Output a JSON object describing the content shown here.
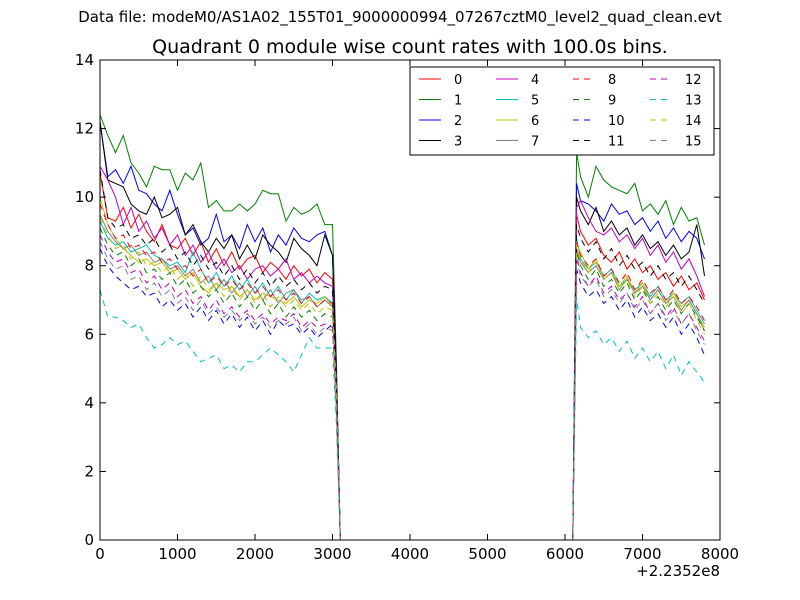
{
  "page": {
    "heading": "Data file: modeM0/AS1A02_155T01_9000000994_07267cztM0_level2_quad_clean.evt"
  },
  "chart_data": {
    "type": "line",
    "title": "Quadrant 0 module wise count rates with 100.0s bins.",
    "xlabel": "",
    "ylabel": "",
    "x_offset_label": "+2.2352e8",
    "xlim": [
      0,
      8000
    ],
    "ylim": [
      0,
      14
    ],
    "x_ticks": [
      0,
      1000,
      2000,
      3000,
      4000,
      5000,
      6000,
      7000,
      8000
    ],
    "y_ticks": [
      0,
      2,
      4,
      6,
      8,
      10,
      12,
      14
    ],
    "legend_position": "top-right",
    "legend_columns": 4,
    "segment_a_x": [
      0,
      100,
      200,
      300,
      400,
      500,
      600,
      700,
      800,
      900,
      1000,
      1100,
      1200,
      1300,
      1400,
      1500,
      1600,
      1700,
      1800,
      1900,
      2000,
      2100,
      2200,
      2300,
      2400,
      2500,
      2600,
      2700,
      2800,
      2900,
      3000,
      3050,
      3100
    ],
    "segment_b_x": [
      6150,
      6200,
      6300,
      6400,
      6500,
      6600,
      6700,
      6800,
      6900,
      7000,
      7100,
      7200,
      7300,
      7400,
      7500,
      7600,
      7700,
      7800
    ],
    "gap_x": [
      3100,
      6100
    ],
    "series": [
      {
        "name": "0",
        "color": "#ff0000",
        "dash": "solid",
        "a": [
          10.7,
          9.4,
          9.3,
          9.7,
          9.1,
          9.5,
          9.0,
          8.7,
          9.2,
          8.6,
          8.5,
          8.8,
          8.3,
          8.7,
          8.1,
          8.5,
          8.0,
          8.4,
          7.9,
          8.2,
          8.3,
          7.8,
          8.1,
          7.9,
          7.6,
          8.0,
          7.7,
          7.9,
          7.5,
          7.8,
          7.6,
          4.8,
          0
        ],
        "b": [
          9.5,
          9.0,
          8.6,
          8.8,
          8.3,
          8.1,
          8.4,
          7.9,
          8.2,
          7.8,
          8.0,
          7.6,
          7.8,
          7.4,
          7.7,
          7.3,
          7.5,
          7.0
        ]
      },
      {
        "name": "1",
        "color": "#008000",
        "dash": "solid",
        "a": [
          12.4,
          11.8,
          11.3,
          11.8,
          11.0,
          10.7,
          10.3,
          10.9,
          10.8,
          10.8,
          10.2,
          10.7,
          10.5,
          11.0,
          9.7,
          9.9,
          9.6,
          9.6,
          9.8,
          9.6,
          9.8,
          10.2,
          10.1,
          10.1,
          9.3,
          9.7,
          9.5,
          9.6,
          9.8,
          9.2,
          9.2,
          5.2,
          0
        ],
        "b": [
          11.3,
          10.6,
          10.0,
          10.9,
          10.5,
          10.3,
          10.2,
          10.1,
          10.4,
          9.6,
          9.8,
          9.5,
          9.9,
          9.2,
          9.7,
          9.3,
          9.4,
          8.6
        ]
      },
      {
        "name": "2",
        "color": "#0000ff",
        "dash": "solid",
        "a": [
          12.2,
          10.6,
          10.8,
          10.4,
          10.9,
          10.2,
          10.1,
          9.8,
          9.6,
          10.2,
          9.5,
          8.9,
          9.1,
          8.6,
          8.8,
          9.5,
          8.7,
          8.9,
          8.5,
          9.2,
          8.7,
          9.1,
          8.4,
          8.9,
          8.6,
          9.1,
          8.8,
          8.7,
          8.9,
          9.0,
          8.3,
          5.0,
          0
        ],
        "b": [
          10.4,
          9.9,
          9.8,
          9.6,
          9.3,
          9.8,
          9.5,
          9.6,
          9.2,
          9.4,
          9.0,
          9.3,
          8.8,
          9.1,
          8.7,
          9.0,
          8.8,
          8.2
        ]
      },
      {
        "name": "3",
        "color": "#000000",
        "dash": "solid",
        "a": [
          12.2,
          10.5,
          10.4,
          10.3,
          9.8,
          9.6,
          9.5,
          10.0,
          9.4,
          9.5,
          9.7,
          8.9,
          9.2,
          8.7,
          8.4,
          8.8,
          8.5,
          8.9,
          8.2,
          8.6,
          8.2,
          8.9,
          8.6,
          8.4,
          8.1,
          8.8,
          8.5,
          8.3,
          8.0,
          8.9,
          8.3,
          4.7,
          0
        ],
        "b": [
          10.0,
          9.6,
          9.2,
          9.7,
          9.0,
          9.3,
          8.9,
          9.1,
          8.6,
          8.9,
          8.5,
          8.7,
          8.3,
          8.6,
          8.2,
          8.4,
          9.2,
          7.7
        ]
      },
      {
        "name": "4",
        "color": "#bf00bf",
        "dash": "solid",
        "a": [
          10.9,
          10.5,
          10.0,
          9.2,
          9.7,
          9.0,
          9.3,
          8.8,
          9.1,
          8.6,
          8.9,
          8.3,
          8.6,
          8.1,
          8.4,
          7.9,
          8.2,
          7.8,
          8.0,
          7.6,
          7.9,
          8.0,
          7.7,
          7.9,
          8.2,
          7.6,
          7.8,
          7.5,
          7.7,
          7.5,
          7.4,
          4.5,
          0
        ],
        "b": [
          9.7,
          9.9,
          9.4,
          9.0,
          8.9,
          9.1,
          8.7,
          8.9,
          8.5,
          8.8,
          8.3,
          8.6,
          8.1,
          8.4,
          7.9,
          8.2,
          7.7,
          7.1
        ]
      },
      {
        "name": "5",
        "color": "#00bfbf",
        "dash": "solid",
        "a": [
          9.3,
          8.8,
          8.6,
          8.7,
          8.4,
          8.5,
          8.6,
          8.3,
          8.2,
          8.0,
          8.1,
          7.8,
          8.4,
          7.9,
          7.5,
          7.8,
          7.4,
          7.7,
          7.3,
          7.6,
          7.2,
          7.5,
          7.1,
          7.4,
          7.0,
          7.3,
          6.9,
          7.2,
          7.0,
          7.1,
          6.9,
          4.3,
          0
        ],
        "b": [
          8.8,
          8.2,
          7.9,
          8.1,
          7.7,
          7.9,
          7.4,
          7.6,
          7.3,
          7.5,
          7.1,
          7.4,
          7.0,
          7.2,
          6.9,
          7.1,
          6.7,
          6.3
        ]
      },
      {
        "name": "6",
        "color": "#bfbf00",
        "dash": "solid",
        "a": [
          10.0,
          9.2,
          8.8,
          8.5,
          8.3,
          8.1,
          8.2,
          8.0,
          8.1,
          7.8,
          7.9,
          7.6,
          7.8,
          7.4,
          7.2,
          7.5,
          7.3,
          7.4,
          7.1,
          7.3,
          7.0,
          7.2,
          7.1,
          7.0,
          6.9,
          7.1,
          6.8,
          7.0,
          6.9,
          7.1,
          6.8,
          4.4,
          0
        ],
        "b": [
          8.6,
          8.4,
          7.9,
          8.2,
          7.6,
          7.8,
          7.4,
          7.7,
          7.2,
          7.5,
          7.0,
          7.3,
          6.9,
          7.2,
          6.8,
          7.0,
          6.6,
          6.2
        ]
      },
      {
        "name": "7",
        "color": "#808080",
        "dash": "solid",
        "a": [
          9.5,
          9.0,
          8.7,
          8.5,
          8.6,
          8.3,
          8.4,
          8.1,
          8.2,
          7.9,
          8.0,
          7.7,
          7.9,
          7.5,
          7.7,
          7.3,
          7.6,
          7.2,
          7.5,
          7.1,
          7.4,
          7.0,
          7.3,
          6.9,
          7.2,
          7.3,
          7.0,
          7.1,
          6.8,
          7.0,
          6.8,
          4.2,
          0
        ],
        "b": [
          8.5,
          8.1,
          7.8,
          8.0,
          7.6,
          7.8,
          7.3,
          7.6,
          7.2,
          7.4,
          7.0,
          7.3,
          6.9,
          7.1,
          6.7,
          7.0,
          6.6,
          6.1
        ]
      },
      {
        "name": "8",
        "color": "#ff0000",
        "dash": "dashed",
        "a": [
          9.8,
          9.2,
          8.8,
          8.9,
          8.5,
          8.6,
          8.3,
          8.4,
          8.1,
          8.2,
          7.9,
          8.0,
          7.7,
          7.9,
          7.5,
          7.7,
          7.4,
          7.6,
          7.3,
          7.5,
          7.2,
          7.4,
          7.1,
          7.3,
          7.0,
          7.2,
          6.9,
          7.1,
          6.8,
          7.0,
          6.9,
          4.3,
          0
        ],
        "b": [
          8.7,
          8.3,
          8.0,
          8.2,
          7.7,
          7.9,
          7.5,
          7.8,
          7.3,
          7.6,
          7.2,
          7.4,
          7.0,
          7.3,
          6.9,
          7.1,
          6.8,
          6.4
        ]
      },
      {
        "name": "9",
        "color": "#008000",
        "dash": "dashed",
        "a": [
          9.1,
          8.6,
          8.3,
          8.4,
          8.0,
          8.2,
          7.8,
          7.9,
          7.6,
          7.8,
          7.4,
          7.6,
          7.2,
          7.4,
          7.1,
          7.3,
          6.9,
          7.2,
          6.8,
          7.1,
          6.7,
          7.0,
          6.6,
          6.9,
          6.5,
          6.8,
          6.5,
          6.7,
          6.4,
          6.6,
          6.5,
          4.1,
          0
        ],
        "b": [
          8.4,
          8.0,
          7.6,
          7.9,
          7.4,
          7.6,
          7.2,
          7.5,
          7.0,
          7.3,
          6.9,
          7.1,
          6.7,
          7.0,
          6.6,
          6.9,
          6.5,
          6.1
        ]
      },
      {
        "name": "10",
        "color": "#0000ff",
        "dash": "dashed",
        "a": [
          8.5,
          8.0,
          7.7,
          7.5,
          7.3,
          7.4,
          7.1,
          7.2,
          6.8,
          7.0,
          6.7,
          6.9,
          6.5,
          6.8,
          6.4,
          6.7,
          6.3,
          6.6,
          6.2,
          6.5,
          6.1,
          6.4,
          6.0,
          6.4,
          6.2,
          6.3,
          6.0,
          6.2,
          5.9,
          6.1,
          6.3,
          3.9,
          0
        ],
        "b": [
          7.9,
          7.5,
          7.1,
          7.3,
          6.9,
          7.1,
          6.7,
          7.0,
          6.5,
          6.8,
          6.4,
          6.6,
          6.2,
          6.5,
          6.0,
          6.3,
          5.9,
          5.4
        ]
      },
      {
        "name": "11",
        "color": "#000000",
        "dash": "dashed",
        "a": [
          10.8,
          9.4,
          9.1,
          9.2,
          8.8,
          8.9,
          8.6,
          8.8,
          8.4,
          8.6,
          8.2,
          8.4,
          8.0,
          8.3,
          7.9,
          8.1,
          7.7,
          8.0,
          7.6,
          7.9,
          7.5,
          7.8,
          7.4,
          7.7,
          7.4,
          7.6,
          7.3,
          7.5,
          7.2,
          7.4,
          7.3,
          4.5,
          0
        ],
        "b": [
          9.2,
          8.8,
          8.4,
          8.7,
          8.2,
          8.5,
          8.0,
          8.3,
          7.9,
          8.1,
          7.7,
          8.0,
          7.6,
          7.8,
          7.4,
          7.7,
          7.3,
          6.9
        ]
      },
      {
        "name": "12",
        "color": "#bf00bf",
        "dash": "dashed",
        "a": [
          8.9,
          8.4,
          8.1,
          8.2,
          7.8,
          7.9,
          7.5,
          7.7,
          7.3,
          7.5,
          7.1,
          7.3,
          6.9,
          7.1,
          6.7,
          7.0,
          6.6,
          6.8,
          6.5,
          6.7,
          6.4,
          6.6,
          6.3,
          6.5,
          6.4,
          6.6,
          6.2,
          6.4,
          6.2,
          6.3,
          6.2,
          3.9,
          0
        ],
        "b": [
          8.3,
          7.8,
          7.4,
          7.7,
          7.2,
          7.4,
          7.0,
          7.2,
          6.8,
          7.1,
          6.6,
          6.9,
          6.5,
          6.8,
          6.3,
          6.6,
          6.2,
          5.8
        ]
      },
      {
        "name": "13",
        "color": "#00bfbf",
        "dash": "dashed",
        "a": [
          7.3,
          6.5,
          6.5,
          6.4,
          6.2,
          6.3,
          5.9,
          5.6,
          5.7,
          5.9,
          5.7,
          5.8,
          5.5,
          5.2,
          5.3,
          5.4,
          5.0,
          5.1,
          4.9,
          5.2,
          5.2,
          5.4,
          5.6,
          5.4,
          5.2,
          4.9,
          5.4,
          5.9,
          5.6,
          5.6,
          5.6,
          3.4,
          0
        ],
        "b": [
          7.1,
          6.2,
          5.9,
          6.1,
          5.7,
          5.9,
          5.5,
          5.8,
          5.3,
          5.6,
          5.2,
          5.5,
          5.0,
          5.4,
          4.8,
          5.2,
          4.9,
          4.6
        ]
      },
      {
        "name": "14",
        "color": "#bfbf00",
        "dash": "dashed",
        "a": [
          9.4,
          8.9,
          8.5,
          8.6,
          8.2,
          8.4,
          8.0,
          8.1,
          7.8,
          8.0,
          7.6,
          7.8,
          7.4,
          7.7,
          7.3,
          7.5,
          7.1,
          7.4,
          7.0,
          7.3,
          6.9,
          7.2,
          6.8,
          7.1,
          6.8,
          7.0,
          6.7,
          6.9,
          6.6,
          6.8,
          6.7,
          4.2,
          0
        ],
        "b": [
          8.6,
          8.2,
          7.8,
          8.1,
          7.6,
          7.8,
          7.3,
          7.6,
          7.1,
          7.4,
          6.9,
          7.2,
          6.8,
          7.1,
          6.6,
          6.9,
          6.4,
          6.0
        ]
      },
      {
        "name": "15",
        "color": "#808080",
        "dash": "dashed",
        "a": [
          8.7,
          8.2,
          7.9,
          8.0,
          7.6,
          7.7,
          7.3,
          7.5,
          7.1,
          7.3,
          6.9,
          7.1,
          6.7,
          7.0,
          6.6,
          6.8,
          6.5,
          6.7,
          6.4,
          6.6,
          6.3,
          6.5,
          6.2,
          6.4,
          6.3,
          6.5,
          6.1,
          6.3,
          6.0,
          6.2,
          6.1,
          3.8,
          0
        ],
        "b": [
          8.2,
          7.7,
          7.4,
          7.6,
          7.1,
          7.3,
          6.9,
          7.2,
          6.7,
          7.0,
          6.6,
          6.9,
          6.4,
          6.7,
          6.3,
          6.6,
          6.1,
          5.7
        ]
      }
    ]
  }
}
